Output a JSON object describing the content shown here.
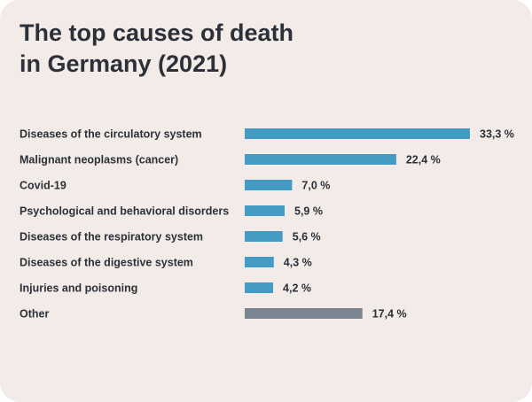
{
  "chart_data": {
    "type": "bar",
    "orientation": "horizontal",
    "title_lines": [
      "The top causes of death",
      "in Germany (2021)"
    ],
    "categories": [
      "Diseases of the circulatory system",
      "Malignant neoplasms (cancer)",
      "Covid-19",
      "Psychological and behavioral disorders",
      "Diseases of the respiratory system",
      "Diseases of the digestive system",
      "Injuries and poisoning",
      "Other"
    ],
    "values": [
      33.3,
      22.4,
      7.0,
      5.9,
      5.6,
      4.3,
      4.2,
      17.4
    ],
    "value_labels": [
      "33,3 %",
      "22,4 %",
      "7,0 %",
      "5,9 %",
      "5,6 %",
      "4,3 %",
      "4,2 %",
      "17,4 %"
    ],
    "xlim": [
      0,
      33.3
    ],
    "grid": false,
    "legend": "none",
    "colors": {
      "bar": "#449bc4",
      "other_bar": "#7a8591",
      "text": "#2c3038",
      "background": "#f2ebe7"
    }
  }
}
